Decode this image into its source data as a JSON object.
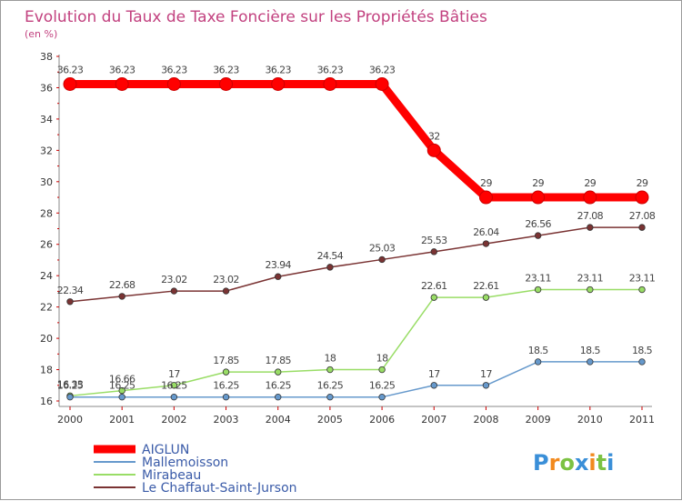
{
  "chart_data": {
    "type": "line",
    "title": "Evolution du Taux de Taxe Foncière sur les Propriétés Bâties",
    "subtitle": "(en %)",
    "x": [
      "2000",
      "2001",
      "2002",
      "2003",
      "2004",
      "2005",
      "2006",
      "2007",
      "2008",
      "2009",
      "2010",
      "2011"
    ],
    "yticks": [
      "16",
      "18",
      "20",
      "22",
      "24",
      "26",
      "28",
      "30",
      "32",
      "34",
      "36",
      "38"
    ],
    "ylim": [
      16,
      38
    ],
    "grid": false,
    "legend_position": "bottom-left",
    "series": [
      {
        "name": "AIGLUN",
        "color": "#ff0000",
        "values": [
          36.23,
          36.23,
          36.23,
          36.23,
          36.23,
          36.23,
          36.23,
          32,
          29,
          29,
          29,
          29
        ],
        "labels": [
          "36.23",
          "36.23",
          "36.23",
          "36.23",
          "36.23",
          "36.23",
          "36.23",
          "32",
          "29",
          "29",
          "29",
          "29"
        ]
      },
      {
        "name": "Mallemoisson",
        "color": "#6699cc",
        "values": [
          16.25,
          16.25,
          16.25,
          16.25,
          16.25,
          16.25,
          16.25,
          17,
          17,
          18.5,
          18.5,
          18.5
        ],
        "labels": [
          "16.25",
          "16.25",
          "16.25",
          "16.25",
          "16.25",
          "16.25",
          "16.25",
          "17",
          "17",
          "18.5",
          "18.5",
          "18.5"
        ]
      },
      {
        "name": "Mirabeau",
        "color": "#99dd66",
        "values": [
          16.33,
          16.66,
          17,
          17.85,
          17.85,
          18,
          18,
          22.61,
          22.61,
          23.11,
          23.11,
          23.11
        ],
        "labels": [
          "16.33",
          "16.66",
          "17",
          "17.85",
          "17.85",
          "18",
          "18",
          "22.61",
          "22.61",
          "23.11",
          "23.11",
          "23.11"
        ]
      },
      {
        "name": "Le Chaffaut-Saint-Jurson",
        "color": "#7a3333",
        "values": [
          22.34,
          22.68,
          23.02,
          23.02,
          23.94,
          24.54,
          25.03,
          25.53,
          26.04,
          26.56,
          27.08,
          27.08
        ],
        "labels": [
          "22.34",
          "22.68",
          "23.02",
          "23.02",
          "23.94",
          "24.54",
          "25.03",
          "25.53",
          "26.04",
          "26.56",
          "27.08",
          "27.08"
        ]
      }
    ]
  },
  "logo": {
    "letters": [
      "P",
      "r",
      "o",
      "x",
      "i",
      "t",
      "i"
    ],
    "colors": [
      "#3a8fd8",
      "#f28a1e",
      "#7cc243",
      "#3a8fd8",
      "#f28a1e",
      "#7cc243",
      "#3a8fd8"
    ]
  }
}
